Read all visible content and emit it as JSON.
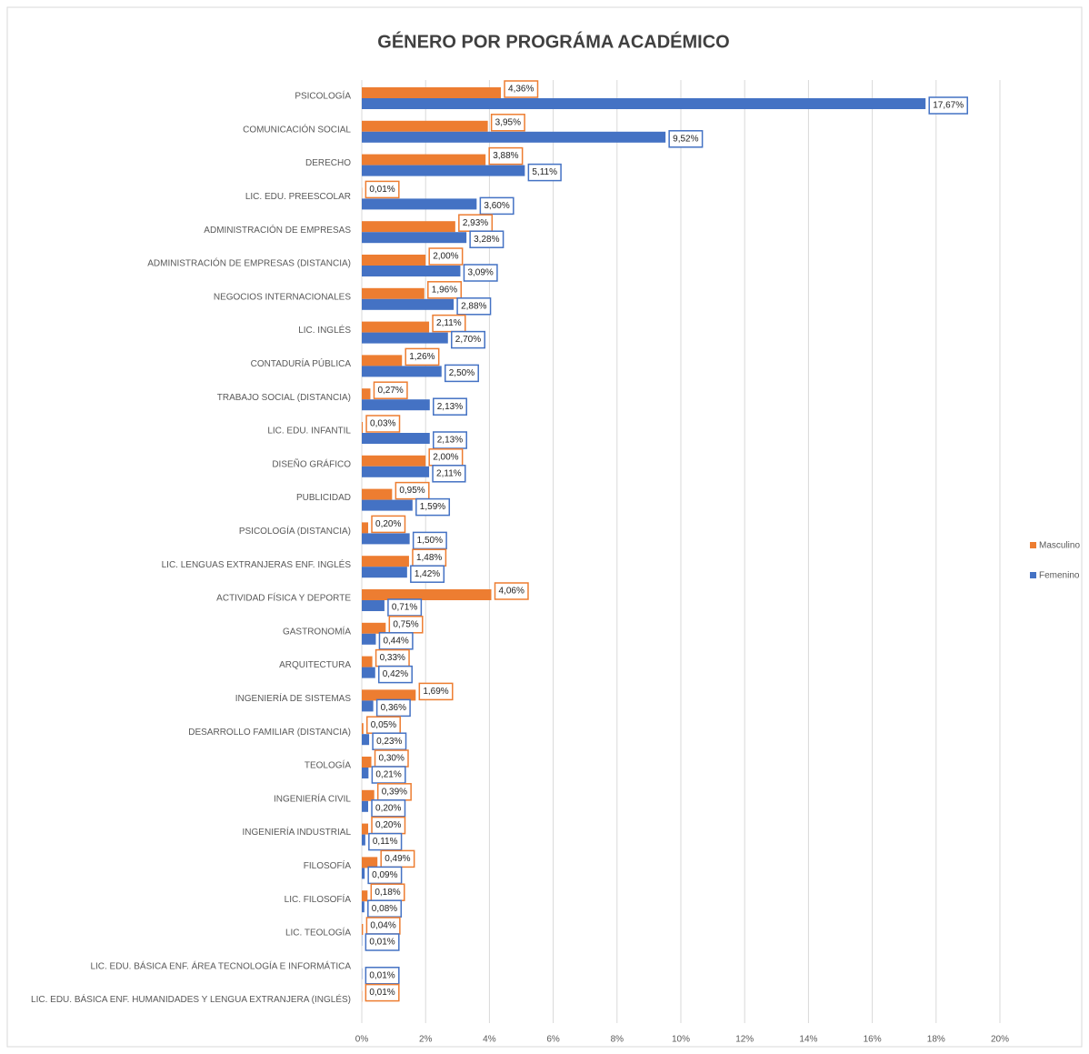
{
  "chart_data": {
    "type": "hbar",
    "title": "GÉNERO POR PROGRÁMA ACADÉMICO",
    "categories": [
      "PSICOLOGÍA",
      "COMUNICACIÓN SOCIAL",
      "DERECHO",
      "LIC. EDU. PREESCOLAR",
      "ADMINISTRACIÓN DE EMPRESAS",
      "ADMINISTRACIÓN DE EMPRESAS (DISTANCIA)",
      "NEGOCIOS INTERNACIONALES",
      "LIC. INGLÉS",
      "CONTADURÍA PÚBLICA",
      "TRABAJO SOCIAL (DISTANCIA)",
      "LIC. EDU. INFANTIL",
      "DISEÑO GRÁFICO",
      "PUBLICIDAD",
      "PSICOLOGÍA (DISTANCIA)",
      "LIC. LENGUAS EXTRANJERAS ENF. INGLÉS",
      "ACTIVIDAD FÍSICA Y DEPORTE",
      "GASTRONOMÍA",
      "ARQUITECTURA",
      "INGENIERÍA DE SISTEMAS",
      "DESARROLLO FAMILIAR (DISTANCIA)",
      "TEOLOGÍA",
      "INGENIERÍA CIVIL",
      "INGENIERÍA INDUSTRIAL",
      "FILOSOFÍA",
      "LIC. FILOSOFÍA",
      "LIC. TEOLOGÍA",
      "LIC. EDU. BÁSICA ENF. ÁREA TECNOLOGÍA E INFORMÁTICA",
      "LIC. EDU. BÁSICA ENF. HUMANIDADES Y LENGUA EXTRANJERA (INGLÉS)"
    ],
    "series": [
      {
        "name": "Masculino",
        "color": "#ed7d31",
        "values": [
          4.36,
          3.95,
          3.88,
          0.01,
          2.93,
          2.0,
          1.96,
          2.11,
          1.26,
          0.27,
          0.03,
          2.0,
          0.95,
          0.2,
          1.48,
          4.06,
          0.75,
          0.33,
          1.69,
          0.05,
          0.3,
          0.39,
          0.2,
          0.49,
          0.18,
          0.04,
          null,
          0.01
        ],
        "value_labels": [
          "4,36%",
          "3,95%",
          "3,88%",
          "0,01%",
          "2,93%",
          "2,00%",
          "1,96%",
          "2,11%",
          "1,26%",
          "0,27%",
          "0,03%",
          "2,00%",
          "0,95%",
          "0,20%",
          "1,48%",
          "4,06%",
          "0,75%",
          "0,33%",
          "1,69%",
          "0,05%",
          "0,30%",
          "0,39%",
          "0,20%",
          "0,49%",
          "0,18%",
          "0,04%",
          null,
          "0,01%"
        ]
      },
      {
        "name": "Femenino",
        "color": "#4472c4",
        "values": [
          17.67,
          9.52,
          5.11,
          3.6,
          3.28,
          3.09,
          2.88,
          2.7,
          2.5,
          2.13,
          2.13,
          2.11,
          1.59,
          1.5,
          1.42,
          0.71,
          0.44,
          0.42,
          0.36,
          0.23,
          0.21,
          0.2,
          0.11,
          0.09,
          0.08,
          0.01,
          0.01,
          null
        ],
        "value_labels": [
          "17,67%",
          "9,52%",
          "5,11%",
          "3,60%",
          "3,28%",
          "3,09%",
          "2,88%",
          "2,70%",
          "2,50%",
          "2,13%",
          "2,13%",
          "2,11%",
          "1,59%",
          "1,50%",
          "1,42%",
          "0,71%",
          "0,44%",
          "0,42%",
          "0,36%",
          "0,23%",
          "0,21%",
          "0,20%",
          "0,11%",
          "0,09%",
          "0,08%",
          "0,01%",
          "0,01%",
          null
        ]
      }
    ],
    "xlim": [
      0,
      20
    ],
    "xticks": [
      {
        "value": 0,
        "label": "0%"
      },
      {
        "value": 2,
        "label": "2%"
      },
      {
        "value": 4,
        "label": "4%"
      },
      {
        "value": 6,
        "label": "6%"
      },
      {
        "value": 8,
        "label": "8%"
      },
      {
        "value": 10,
        "label": "10%"
      },
      {
        "value": 12,
        "label": "12%"
      },
      {
        "value": 14,
        "label": "14%"
      },
      {
        "value": 16,
        "label": "16%"
      },
      {
        "value": 18,
        "label": "18%"
      },
      {
        "value": 20,
        "label": "20%"
      }
    ],
    "grid": true,
    "legend": "right"
  }
}
